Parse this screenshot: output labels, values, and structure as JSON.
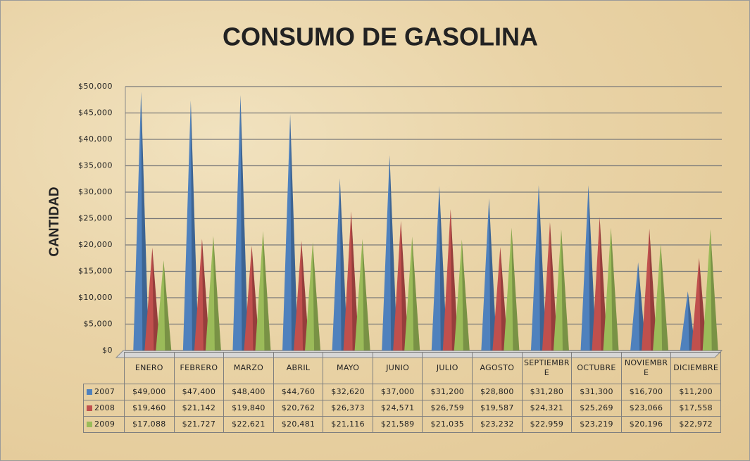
{
  "chart_data": {
    "type": "cone",
    "title": "CONSUMO DE GASOLINA",
    "y_label": "CANTIDAD",
    "categories": [
      "ENERO",
      "FEBRERO",
      "MARZO",
      "ABRIL",
      "MAYO",
      "JUNIO",
      "JULIO",
      "AGOSTO",
      "SEPTIEMBRE",
      "OCTUBRE",
      "NOVIEMBRE",
      "DICIEMBRE"
    ],
    "series": [
      {
        "name": "2007",
        "color": "#4f81bd",
        "values": [
          49000,
          47400,
          48400,
          44760,
          32620,
          37000,
          31200,
          28800,
          31280,
          31300,
          16700,
          11200
        ],
        "value_labels": [
          "$49,000",
          "$47,400",
          "$48,400",
          "$44,760",
          "$32,620",
          "$37,000",
          "$31,200",
          "$28,800",
          "$31,280",
          "$31,300",
          "$16,700",
          "$11,200"
        ]
      },
      {
        "name": "2008",
        "color": "#c0504d",
        "values": [
          19460,
          21142,
          19840,
          20762,
          26373,
          24571,
          26759,
          19587,
          24321,
          25269,
          23066,
          17558
        ],
        "value_labels": [
          "$19,460",
          "$21,142",
          "$19,840",
          "$20,762",
          "$26,373",
          "$24,571",
          "$26,759",
          "$19,587",
          "$24,321",
          "$25,269",
          "$23,066",
          "$17,558"
        ]
      },
      {
        "name": "2009",
        "color": "#9bbb59",
        "values": [
          17088,
          21727,
          22621,
          20481,
          21116,
          21589,
          21035,
          23232,
          22959,
          23219,
          20196,
          22972
        ],
        "value_labels": [
          "$17,088",
          "$21,727",
          "$22,621",
          "$20,481",
          "$21,116",
          "$21,589",
          "$21,035",
          "$23,232",
          "$22,959",
          "$23,219",
          "$20,196",
          "$22,972"
        ]
      }
    ],
    "ylim": [
      0,
      50000
    ],
    "yticks": [
      {
        "value": 0,
        "label": "$0"
      },
      {
        "value": 5000,
        "label": "$5,000"
      },
      {
        "value": 10000,
        "label": "$10,000"
      },
      {
        "value": 15000,
        "label": "$15,000"
      },
      {
        "value": 20000,
        "label": "$20,000"
      },
      {
        "value": 25000,
        "label": "$25,000"
      },
      {
        "value": 30000,
        "label": "$30,000"
      },
      {
        "value": 35000,
        "label": "$35,000"
      },
      {
        "value": 40000,
        "label": "$40,000"
      },
      {
        "value": 45000,
        "label": "$45,000"
      },
      {
        "value": 50000,
        "label": "$50,000"
      }
    ],
    "grid": true
  }
}
